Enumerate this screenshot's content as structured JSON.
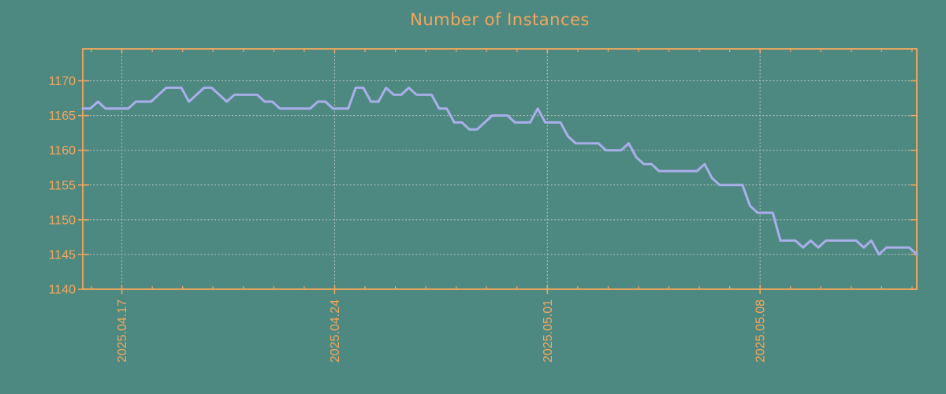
{
  "chart_data": {
    "type": "line",
    "title": "Number of Instances",
    "series": [
      {
        "name": "Number of Instances",
        "color": "#a9afeb",
        "values": [
          1166,
          1166,
          1167,
          1166,
          1166,
          1166,
          1166,
          1167,
          1167,
          1167,
          1168,
          1169,
          1169,
          1169,
          1167,
          1168,
          1169,
          1169,
          1168,
          1167,
          1168,
          1168,
          1168,
          1168,
          1167,
          1167,
          1166,
          1166,
          1166,
          1166,
          1166,
          1167,
          1167,
          1166,
          1166,
          1166,
          1169,
          1169,
          1167,
          1167,
          1169,
          1168,
          1168,
          1169,
          1168,
          1168,
          1168,
          1166,
          1166,
          1164,
          1164,
          1163,
          1163,
          1164,
          1165,
          1165,
          1165,
          1164,
          1164,
          1164,
          1166,
          1164,
          1164,
          1164,
          1162,
          1161,
          1161,
          1161,
          1161,
          1160,
          1160,
          1160,
          1161,
          1159,
          1158,
          1158,
          1157,
          1157,
          1157,
          1157,
          1157,
          1157,
          1158,
          1156,
          1155,
          1155,
          1155,
          1155,
          1152,
          1151,
          1151,
          1151,
          1147,
          1147,
          1147,
          1146,
          1147,
          1146,
          1147,
          1147,
          1147,
          1147,
          1147,
          1146,
          1147,
          1145,
          1146,
          1146,
          1146,
          1146,
          1145
        ]
      }
    ],
    "x_axis": {
      "tick_labels": [
        "2025.04.17",
        "2025.04.24",
        "2025.05.01",
        "2025.05.08"
      ],
      "major_tick_days": [
        0,
        7,
        14,
        21
      ],
      "minor_tick_day_min": -1,
      "minor_tick_day_max": 26,
      "day0_frac": 0.04688,
      "day_step_frac": 0.036437,
      "points_per_day": 4.0
    },
    "y_axis": {
      "tick_labels": [
        "1140",
        "1145",
        "1150",
        "1155",
        "1160",
        "1165",
        "1170"
      ],
      "tick_values": [
        1140,
        1145,
        1150,
        1155,
        1160,
        1165,
        1170
      ],
      "min": 1140,
      "max": 1174.6
    },
    "grid": true,
    "legend_position": "none",
    "colors": {
      "background": "#4d8981",
      "axis": "#f3a75d",
      "grid": "#c2c7c6",
      "line": "#a9afeb"
    }
  }
}
